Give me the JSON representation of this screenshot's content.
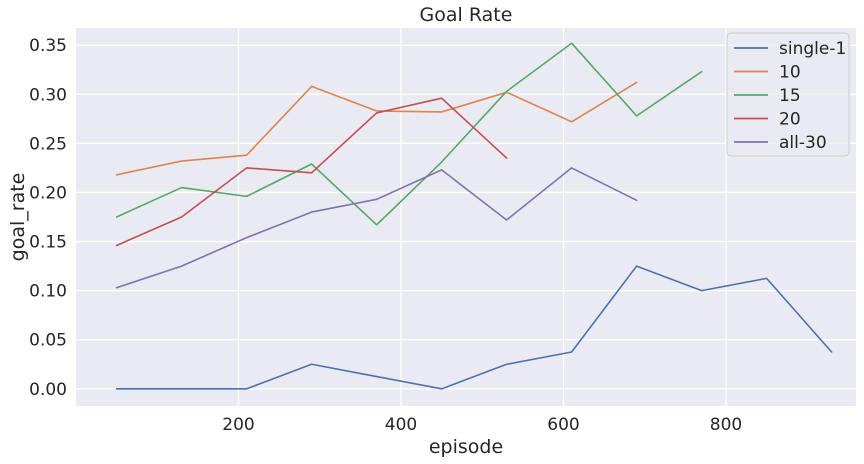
{
  "chart_data": {
    "type": "line",
    "title": "Goal Rate",
    "xlabel": "episode",
    "ylabel": "goal_rate",
    "xlim": [
      0,
      960
    ],
    "ylim": [
      -0.0175,
      0.3675
    ],
    "xticks": [
      200,
      400,
      600,
      800
    ],
    "xtick_labels": [
      "200",
      "400",
      "600",
      "800"
    ],
    "yticks": [
      0.0,
      0.05,
      0.1,
      0.15,
      0.2,
      0.25,
      0.3,
      0.35
    ],
    "ytick_labels": [
      "0.00",
      "0.05",
      "0.10",
      "0.15",
      "0.20",
      "0.25",
      "0.30",
      "0.35"
    ],
    "grid": true,
    "legend_position": "top-right",
    "series": [
      {
        "name": "single-1",
        "color": "#4c72b0",
        "x": [
          50,
          130,
          210,
          290,
          370,
          450,
          530,
          610,
          690,
          770,
          850,
          930
        ],
        "y": [
          0.0,
          0.0,
          0.0,
          0.025,
          0.0125,
          0.0,
          0.025,
          0.0375,
          0.125,
          0.1,
          0.1125,
          0.0375
        ]
      },
      {
        "name": "10",
        "color": "#dd8452",
        "x": [
          50,
          130,
          210,
          290,
          370,
          450,
          530,
          610,
          690
        ],
        "y": [
          0.218,
          0.232,
          0.238,
          0.308,
          0.283,
          0.282,
          0.302,
          0.272,
          0.312
        ]
      },
      {
        "name": "15",
        "color": "#55a868",
        "x": [
          50,
          130,
          210,
          290,
          370,
          450,
          530,
          610,
          690,
          770
        ],
        "y": [
          0.175,
          0.205,
          0.196,
          0.229,
          0.167,
          0.231,
          0.303,
          0.352,
          0.278,
          0.323
        ]
      },
      {
        "name": "20",
        "color": "#c44e52",
        "x": [
          50,
          130,
          210,
          290,
          370,
          450,
          530
        ],
        "y": [
          0.146,
          0.175,
          0.225,
          0.22,
          0.281,
          0.296,
          0.235
        ]
      },
      {
        "name": "all-30",
        "color": "#8172b3",
        "x": [
          50,
          130,
          210,
          290,
          370,
          450,
          530,
          610,
          690
        ],
        "y": [
          0.103,
          0.125,
          0.154,
          0.18,
          0.193,
          0.223,
          0.172,
          0.225,
          0.192
        ]
      }
    ]
  }
}
